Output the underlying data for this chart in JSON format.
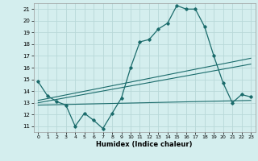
{
  "xlabel": "Humidex (Indice chaleur)",
  "bg_color": "#d4eeee",
  "grid_color": "#b8d8d8",
  "line_color": "#1a6b6b",
  "x_ticks": [
    0,
    1,
    2,
    3,
    4,
    5,
    6,
    7,
    8,
    9,
    10,
    11,
    12,
    13,
    14,
    15,
    16,
    17,
    18,
    19,
    20,
    21,
    22,
    23
  ],
  "y_ticks": [
    11,
    12,
    13,
    14,
    15,
    16,
    17,
    18,
    19,
    20,
    21
  ],
  "xlim": [
    -0.5,
    23.5
  ],
  "ylim": [
    10.5,
    21.5
  ],
  "line1_x": [
    0,
    1,
    2,
    3,
    4,
    5,
    6,
    7,
    8,
    9,
    10,
    11,
    12,
    13,
    14,
    15,
    16,
    17,
    18,
    19,
    20,
    21,
    22,
    23
  ],
  "line1_y": [
    14.8,
    13.6,
    13.1,
    12.8,
    11.0,
    12.1,
    11.5,
    10.8,
    12.1,
    13.4,
    16.0,
    18.2,
    18.4,
    19.3,
    19.8,
    21.3,
    21.0,
    21.0,
    19.5,
    17.0,
    14.7,
    13.0,
    13.7,
    13.5
  ],
  "line2_x": [
    0,
    23
  ],
  "line2_y": [
    13.2,
    16.8
  ],
  "line3_x": [
    0,
    23
  ],
  "line3_y": [
    13.0,
    16.3
  ],
  "line4_x": [
    0,
    23
  ],
  "line4_y": [
    12.8,
    13.2
  ]
}
